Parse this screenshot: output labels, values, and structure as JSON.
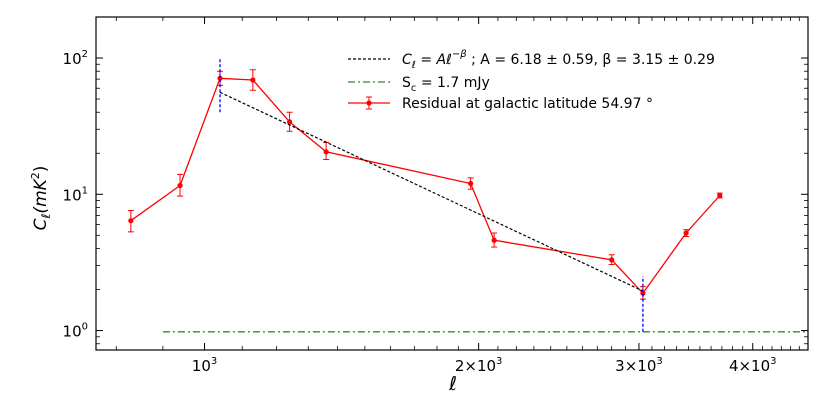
{
  "chart_data": {
    "type": "line",
    "x_scale": "log",
    "y_scale": "log",
    "xlim": [
      760,
      4600
    ],
    "ylim": [
      0.72,
      200
    ],
    "xlabel": "ℓ",
    "ylabel": "C_ℓ(mK²)",
    "x_ticks": [
      {
        "value": 1000,
        "mantissa": "",
        "exp": "3"
      },
      {
        "value": 2000,
        "mantissa": "2×",
        "exp": "3"
      },
      {
        "value": 3000,
        "mantissa": "3×",
        "exp": "3"
      },
      {
        "value": 4000,
        "mantissa": "4×",
        "exp": "3"
      }
    ],
    "y_ticks": [
      {
        "value": 1,
        "exp": "0"
      },
      {
        "value": 10,
        "exp": "1"
      },
      {
        "value": 100,
        "exp": "2"
      }
    ],
    "tick_base": "10",
    "legend_position": "top-right",
    "series": [
      {
        "name": "Residual at galactic latitude 54.97 °",
        "style": "line-with-markers-and-errorbars",
        "color": "#ff0000",
        "points": [
          {
            "x": 830,
            "y": 6.4,
            "ylo": 5.3,
            "yhi": 7.6
          },
          {
            "x": 940,
            "y": 11.6,
            "ylo": 9.7,
            "yhi": 14.0
          },
          {
            "x": 1040,
            "y": 71,
            "ylo": 63,
            "yhi": 80
          },
          {
            "x": 1130,
            "y": 69,
            "ylo": 58,
            "yhi": 82
          },
          {
            "x": 1240,
            "y": 34,
            "ylo": 29,
            "yhi": 40
          },
          {
            "x": 1360,
            "y": 20.5,
            "ylo": 18.0,
            "yhi": 24.0
          },
          {
            "x": 1960,
            "y": 12.0,
            "ylo": 10.9,
            "yhi": 13.2
          },
          {
            "x": 2080,
            "y": 4.6,
            "ylo": 4.1,
            "yhi": 5.2
          },
          {
            "x": 2800,
            "y": 3.3,
            "ylo": 3.05,
            "yhi": 3.6
          },
          {
            "x": 3030,
            "y": 1.88,
            "ylo": 1.7,
            "yhi": 2.1
          },
          {
            "x": 3380,
            "y": 5.2,
            "ylo": 4.9,
            "yhi": 5.5
          },
          {
            "x": 3680,
            "y": 9.8,
            "ylo": 9.4,
            "yhi": 10.2
          }
        ]
      },
      {
        "name": "C_ℓ = Aℓ^(−β) ; A = 6.18 ± 0.59, β = 3.15 ± 0.29",
        "style": "dashed",
        "color": "#000000",
        "points": [
          {
            "x": 1040,
            "y": 56
          },
          {
            "x": 3030,
            "y": 1.95
          }
        ]
      },
      {
        "name": "S_c = 1.7 mJy",
        "style": "dash-dot",
        "color": "#2e8b2e",
        "points": [
          {
            "x": 900,
            "y": 0.98
          },
          {
            "x": 4600,
            "y": 0.98
          }
        ]
      }
    ],
    "vertical_markers": [
      {
        "x": 1040,
        "ylo": 40,
        "yhi": 100,
        "color": "#0000ff"
      },
      {
        "x": 3030,
        "ylo": 0.98,
        "yhi": 2.5,
        "color": "#0000ff"
      }
    ],
    "legend": {
      "fit_lhs": "C",
      "fit_sub": "ℓ",
      "fit_rhs": " = Aℓ",
      "fit_exp": "−β",
      "fit_params": " ; A = 6.18 ± 0.59, β = 3.15 ± 0.29",
      "sc_lhs": "S",
      "sc_sub": "c",
      "sc_rhs": " = 1.7 mJy",
      "residual_label": "Residual at galactic latitude 54.97 °"
    },
    "ylabel_parts": {
      "c": "C",
      "sub": "ℓ",
      "open": "(mK",
      "exp": "2",
      "close": ")"
    }
  }
}
